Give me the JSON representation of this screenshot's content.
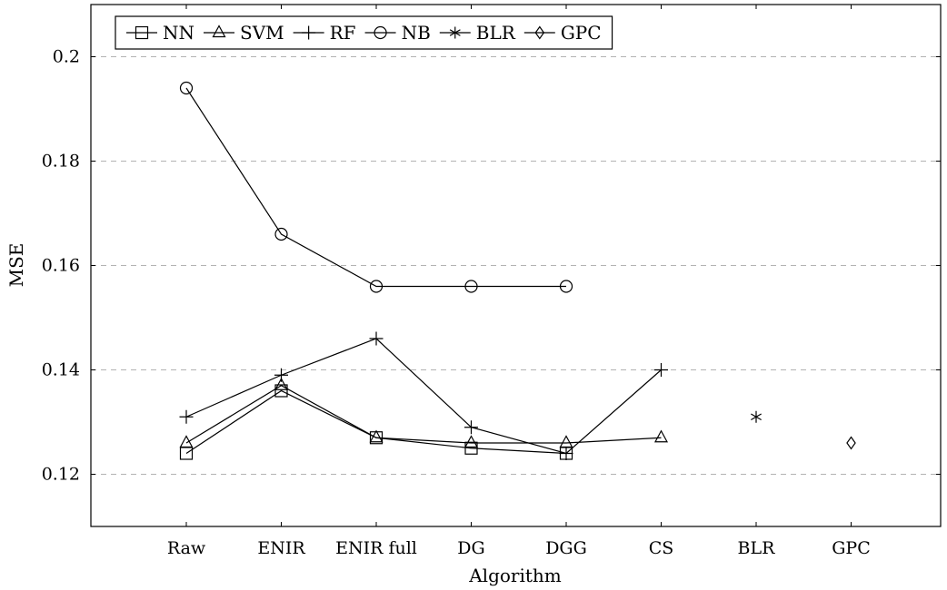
{
  "chart_data": {
    "type": "line",
    "title": "",
    "xlabel": "Algorithm",
    "ylabel": "MSE",
    "categories": [
      "Raw",
      "ENIR",
      "ENIR full",
      "DG",
      "DGG",
      "CS",
      "BLR",
      "GPC"
    ],
    "yticks": [
      "0.12",
      "0.14",
      "0.16",
      "0.18",
      "0.2"
    ],
    "ylim": [
      0.11,
      0.21
    ],
    "grid": "horizontal dashed",
    "legend_position": "top-left",
    "series": [
      {
        "name": "NN",
        "marker": "square",
        "values": [
          0.124,
          0.136,
          0.127,
          0.125,
          0.124,
          null,
          null,
          null
        ]
      },
      {
        "name": "SVM",
        "marker": "triangle",
        "values": [
          0.126,
          0.137,
          0.127,
          0.126,
          0.126,
          0.127,
          null,
          null
        ]
      },
      {
        "name": "RF",
        "marker": "plus",
        "values": [
          0.131,
          0.139,
          0.146,
          0.129,
          0.124,
          0.14,
          null,
          null
        ]
      },
      {
        "name": "NB",
        "marker": "circle",
        "values": [
          0.194,
          0.166,
          0.156,
          0.156,
          0.156,
          null,
          null,
          null
        ]
      },
      {
        "name": "BLR",
        "marker": "asterisk",
        "values": [
          null,
          null,
          null,
          null,
          null,
          null,
          0.131,
          null
        ]
      },
      {
        "name": "GPC",
        "marker": "diamond",
        "values": [
          null,
          null,
          null,
          null,
          null,
          null,
          null,
          0.126
        ]
      }
    ]
  }
}
